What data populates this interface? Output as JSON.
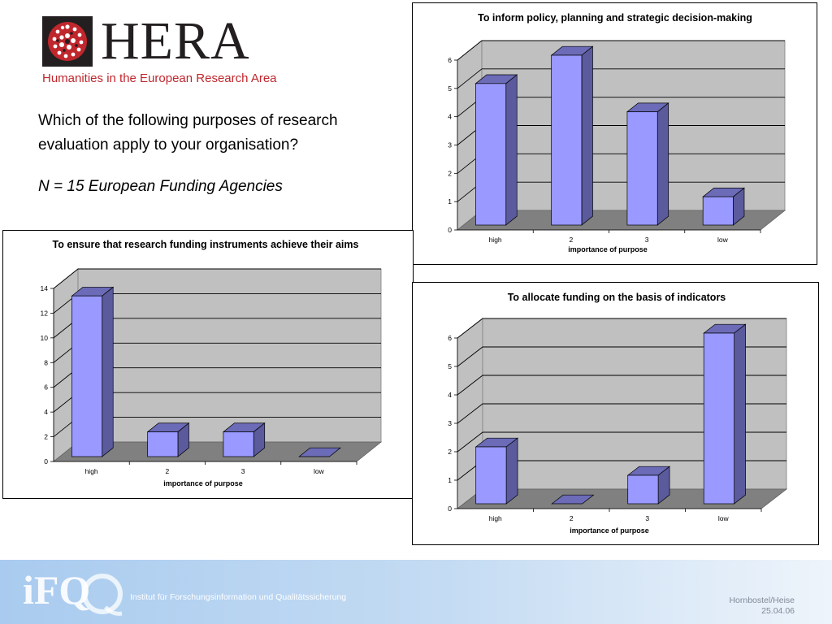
{
  "header": {
    "logo_word": "HERA",
    "logo_tagline": "Humanities in the European Research Area",
    "question": "Which of the following purposes of research evaluation apply to your organisation?",
    "sample_note": "N = 15 European Funding Agencies"
  },
  "footer": {
    "logo_text": "iFQ",
    "institute": "Institut für Forschungsinformation und Qualitätssicherung",
    "authors": "Hornbostel/Heise",
    "date": "25.04.06"
  },
  "colors": {
    "bar_front": "#9999ff",
    "bar_side": "#5a5a9c",
    "bar_top": "#6b6bb8",
    "wall": "#c0c0c0",
    "floor": "#808080",
    "logo_red": "#c0272d"
  },
  "chart_data": [
    {
      "type": "bar",
      "title": "To inform policy, planning and strategic decision-making",
      "categories": [
        "high",
        "2",
        "3",
        "low"
      ],
      "values": [
        5,
        6,
        4,
        1
      ],
      "xlabel": "importance of purpose",
      "ylabel": "",
      "ylim": [
        0,
        6
      ],
      "yticks": [
        0,
        1,
        2,
        3,
        4,
        5,
        6
      ],
      "grid": true
    },
    {
      "type": "bar",
      "title": "To ensure that research funding instruments achieve their aims",
      "categories": [
        "high",
        "2",
        "3",
        "low"
      ],
      "values": [
        13,
        2,
        2,
        0
      ],
      "xlabel": "importance of purpose",
      "ylabel": "",
      "ylim": [
        0,
        14
      ],
      "yticks": [
        0,
        2,
        4,
        6,
        8,
        10,
        12,
        14
      ],
      "grid": true
    },
    {
      "type": "bar",
      "title": "To allocate funding on the basis of indicators",
      "categories": [
        "high",
        "2",
        "3",
        "low"
      ],
      "values": [
        2,
        0,
        1,
        6
      ],
      "xlabel": "importance of purpose",
      "ylabel": "",
      "ylim": [
        0,
        6
      ],
      "yticks": [
        0,
        1,
        2,
        3,
        4,
        5,
        6
      ],
      "grid": true
    }
  ]
}
